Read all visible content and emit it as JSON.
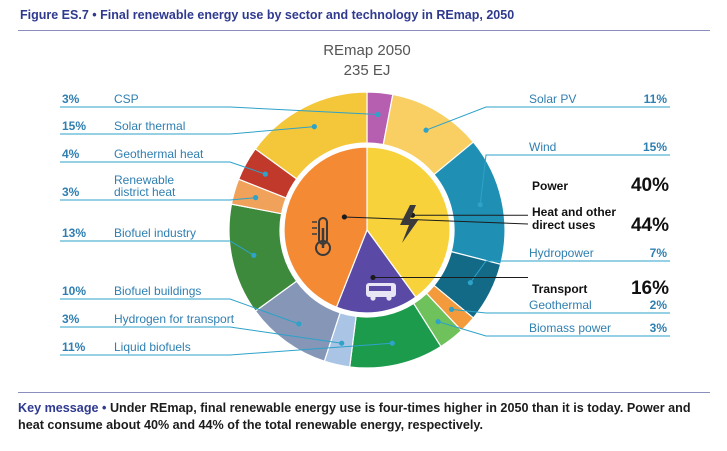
{
  "figure_title": {
    "label": "Figure ES.7",
    "text": "Final renewable energy use by sector and technology in REmap, 2050"
  },
  "key_message": {
    "label": "Key message",
    "text": "Under REmap, final renewable energy use is four-times higher in 2050 than it is today. Power and heat consume about 40% and 44% of the total renewable energy, respectively."
  },
  "chart_data": {
    "type": "pie",
    "title": "REmap 2050",
    "subtitle": "235 EJ",
    "outer_ring": [
      {
        "label": "CSP",
        "value": 3,
        "display": "3%",
        "color": "#b65fb0"
      },
      {
        "label": "Solar PV",
        "value": 11,
        "display": "11%",
        "color": "#f9cf63"
      },
      {
        "label": "Wind",
        "value": 15,
        "display": "15%",
        "color": "#1f8fb3"
      },
      {
        "label": "Hydropower",
        "value": 7,
        "display": "7%",
        "color": "#136a86"
      },
      {
        "label": "Geothermal",
        "value": 2,
        "display": "2%",
        "color": "#f29a3c"
      },
      {
        "label": "Biomass power",
        "value": 3,
        "display": "3%",
        "color": "#6fc15c"
      },
      {
        "label": "Liquid biofuels",
        "value": 11,
        "display": "11%",
        "color": "#1d9b4d"
      },
      {
        "label": "Hydrogen for transport",
        "value": 3,
        "display": "3%",
        "color": "#a9c4e4"
      },
      {
        "label": "Biofuel buildings",
        "value": 10,
        "display": "10%",
        "color": "#8596b7"
      },
      {
        "label": "Biofuel industry",
        "value": 13,
        "display": "13%",
        "color": "#3d8a3d"
      },
      {
        "label": "Renewable district heat",
        "value": 3,
        "display": "3%",
        "color": "#f0a15a"
      },
      {
        "label": "Geothermal heat",
        "value": 4,
        "display": "4%",
        "color": "#c0392b"
      },
      {
        "label": "Solar thermal",
        "value": 15,
        "display": "15%",
        "color": "#f4c63a"
      }
    ],
    "inner_ring": [
      {
        "label": "Power",
        "value": 40,
        "display": "40%",
        "color": "#f7d23b",
        "icon": "lightning-bolt-icon"
      },
      {
        "label": "Transport",
        "value": 16,
        "display": "16%",
        "color": "#5a4aa6",
        "icon": "bus-icon"
      },
      {
        "label": "Heat and other direct uses",
        "value": 44,
        "display": "44%",
        "color": "#f58a34",
        "icon": "thermometer-icon"
      }
    ],
    "colors": {
      "label_line": "#2ea2c9",
      "label_text": "#2f7fb0",
      "title": "#555555"
    }
  }
}
